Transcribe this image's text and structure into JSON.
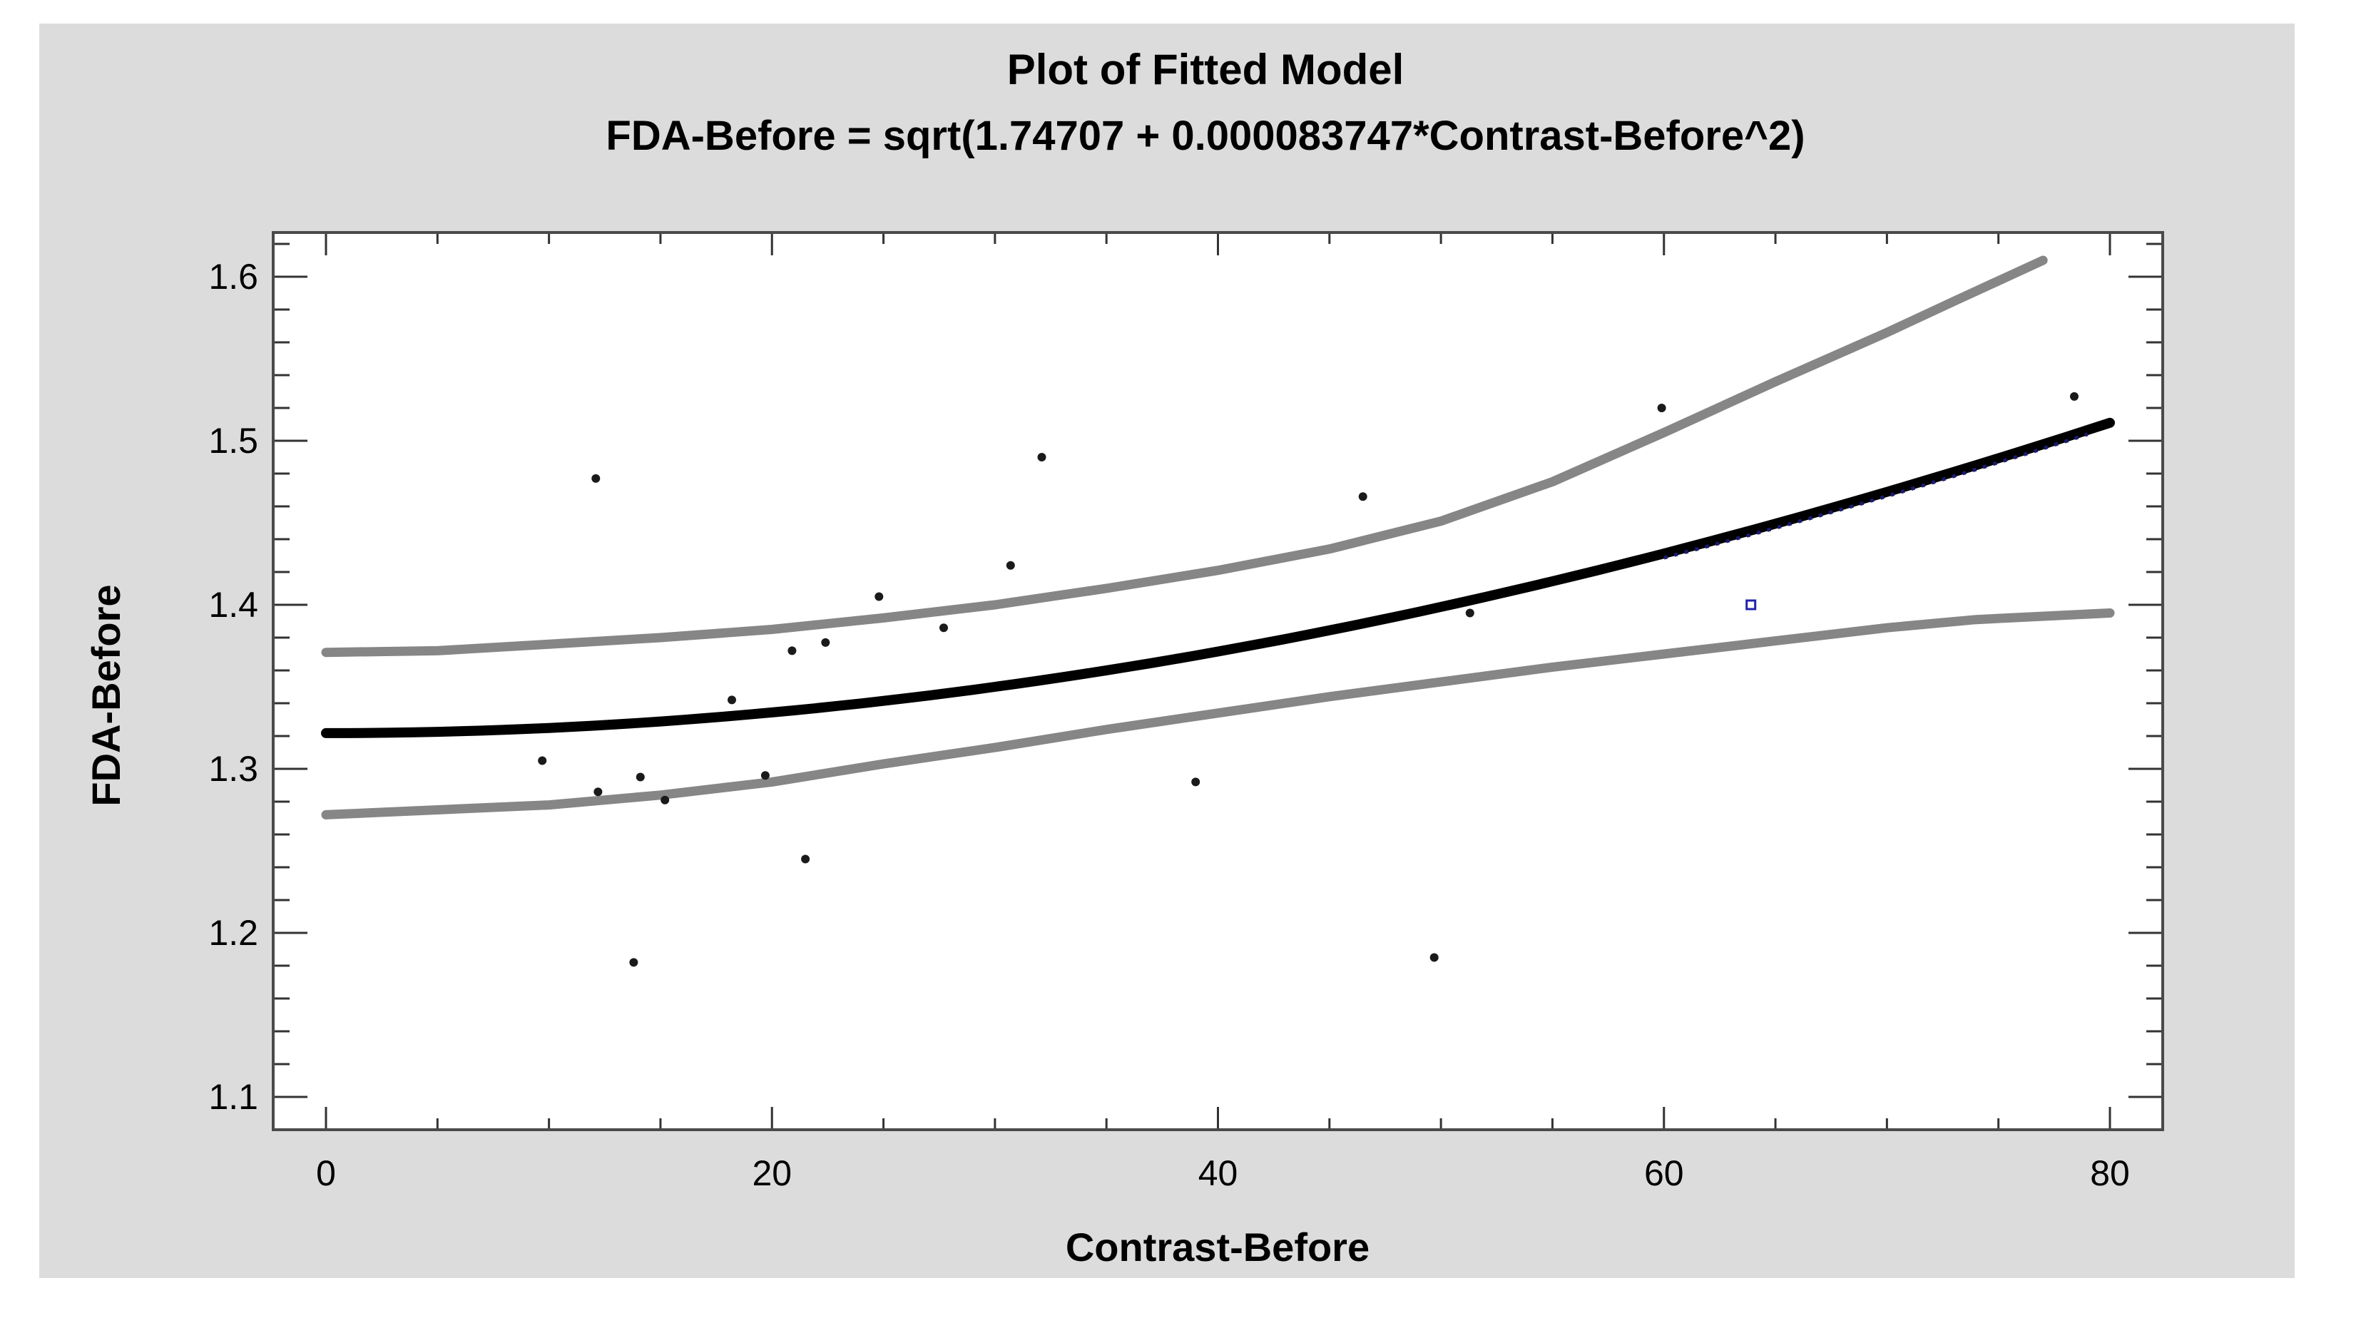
{
  "window": {
    "page_background": "#ffffff",
    "canvas_background": "#dcdcdc",
    "plot_background": "#ffffff",
    "frame_color": "#4a4a4a",
    "tick_color": "#333333",
    "text_color": "#000000"
  },
  "chart_data": {
    "type": "scatter",
    "title": "Plot of Fitted Model",
    "equation": "FDA-Before = sqrt(1.74707 + 0.000083747*Contrast-Before^2)",
    "xlabel": "Contrast-Before",
    "ylabel": "FDA-Before",
    "xlim": [
      0,
      80
    ],
    "ylim": [
      1.1,
      1.6
    ],
    "x_ticks": [
      0,
      20,
      40,
      60,
      80
    ],
    "x_minor_step": 5,
    "y_ticks": [
      1.1,
      1.2,
      1.3,
      1.4,
      1.5,
      1.6
    ],
    "y_minor_step": 0.02,
    "grid": false,
    "legend_position": "none",
    "fit": {
      "model": "y = sqrt(a + b*x^2)",
      "a": 1.74707,
      "b": 8.3747e-05,
      "x_range": [
        0,
        80
      ],
      "color": "#000000"
    },
    "confidence_bands": {
      "color": "#868686",
      "upper": [
        [
          0,
          1.371
        ],
        [
          5,
          1.372
        ],
        [
          10,
          1.376
        ],
        [
          15,
          1.38
        ],
        [
          20,
          1.385
        ],
        [
          25,
          1.392
        ],
        [
          30,
          1.4
        ],
        [
          35,
          1.41
        ],
        [
          40,
          1.421
        ],
        [
          45,
          1.434
        ],
        [
          50,
          1.451
        ],
        [
          55,
          1.475
        ],
        [
          60,
          1.505
        ],
        [
          65,
          1.536
        ],
        [
          70,
          1.566
        ],
        [
          73,
          1.585
        ],
        [
          77,
          1.61
        ]
      ],
      "lower": [
        [
          0,
          1.272
        ],
        [
          5,
          1.275
        ],
        [
          10,
          1.278
        ],
        [
          15,
          1.284
        ],
        [
          20,
          1.292
        ],
        [
          25,
          1.303
        ],
        [
          30,
          1.313
        ],
        [
          35,
          1.324
        ],
        [
          40,
          1.334
        ],
        [
          45,
          1.344
        ],
        [
          50,
          1.353
        ],
        [
          55,
          1.362
        ],
        [
          60,
          1.37
        ],
        [
          65,
          1.378
        ],
        [
          70,
          1.386
        ],
        [
          74,
          1.391
        ],
        [
          80,
          1.395
        ]
      ]
    },
    "points": [
      [
        9.7,
        1.305
      ],
      [
        12.1,
        1.477
      ],
      [
        12.2,
        1.286
      ],
      [
        13.8,
        1.182
      ],
      [
        14.1,
        1.295
      ],
      [
        15.2,
        1.281
      ],
      [
        18.2,
        1.342
      ],
      [
        19.7,
        1.296
      ],
      [
        20.9,
        1.372
      ],
      [
        21.5,
        1.245
      ],
      [
        22.4,
        1.377
      ],
      [
        24.8,
        1.405
      ],
      [
        27.7,
        1.386
      ],
      [
        30.7,
        1.424
      ],
      [
        32.1,
        1.49
      ],
      [
        39.0,
        1.292
      ],
      [
        46.5,
        1.466
      ],
      [
        49.7,
        1.185
      ],
      [
        51.3,
        1.395
      ],
      [
        59.9,
        1.52
      ],
      [
        78.4,
        1.527
      ]
    ],
    "point_color": "#1a1a1a",
    "special_point": {
      "x": 63.9,
      "y": 1.4,
      "marker": "open-square",
      "color": "#2222aa"
    },
    "forecast_overlay": {
      "x_range": [
        60,
        79
      ],
      "style": "dotted",
      "color": "#1c1c75"
    }
  }
}
